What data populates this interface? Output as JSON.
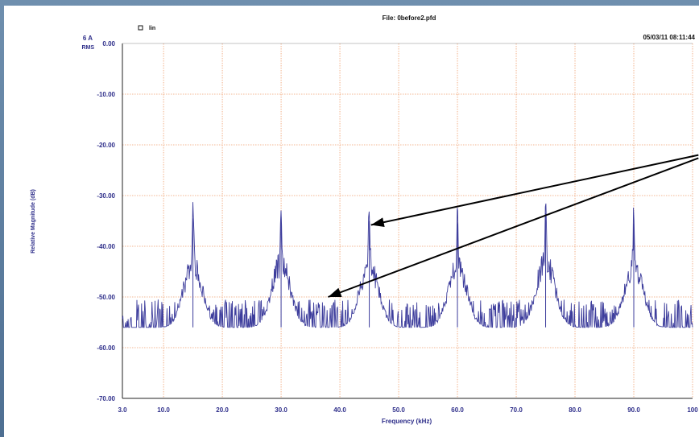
{
  "chart_data": {
    "type": "line",
    "title": "File: 0before2.pfd",
    "timestamp": "05/03/11 08:11:44",
    "legend": {
      "symbol": "square-icon",
      "label": "lin",
      "placement": "top-left"
    },
    "channel_label": [
      "6 A",
      "RMS"
    ],
    "xlabel": "Frequency (kHz)",
    "ylabel": "Relative Magnitude (dB)",
    "xlim": [
      3.0,
      100.0
    ],
    "ylim": [
      -70,
      0
    ],
    "grid": true,
    "x_ticks": [
      "3.0",
      "10.0",
      "20.0",
      "30.0",
      "40.0",
      "50.0",
      "60.0",
      "70.0",
      "80.0",
      "90.0",
      "100"
    ],
    "x_tick_values": [
      3,
      10,
      20,
      30,
      40,
      50,
      60,
      70,
      80,
      90,
      100
    ],
    "y_ticks": [
      "0.00",
      "-10.00",
      "-20.00",
      "-30.00",
      "-40.00",
      "-50.00",
      "-60.00",
      "-70.00"
    ],
    "y_tick_values": [
      0,
      -10,
      -20,
      -30,
      -40,
      -50,
      -60,
      -70
    ],
    "noise_floor_db": -56,
    "peaks": [
      {
        "x": 15.0,
        "y": -34.5
      },
      {
        "x": 30.0,
        "y": -34.3
      },
      {
        "x": 45.0,
        "y": -35.0
      },
      {
        "x": 60.0,
        "y": -35.5
      },
      {
        "x": 75.0,
        "y": -33.5
      },
      {
        "x": 90.0,
        "y": -35.5
      }
    ],
    "annotations": [
      {
        "type": "arrow",
        "from": [
          101,
          -22
        ],
        "to": [
          45.3,
          -35.8
        ]
      },
      {
        "type": "arrow",
        "from": [
          101,
          -22.6
        ],
        "to": [
          38.0,
          -50.0
        ]
      }
    ],
    "colors": {
      "series": "#3d3d9c",
      "grid": "#f0a070",
      "axis_text": "#2e2e8a"
    }
  }
}
